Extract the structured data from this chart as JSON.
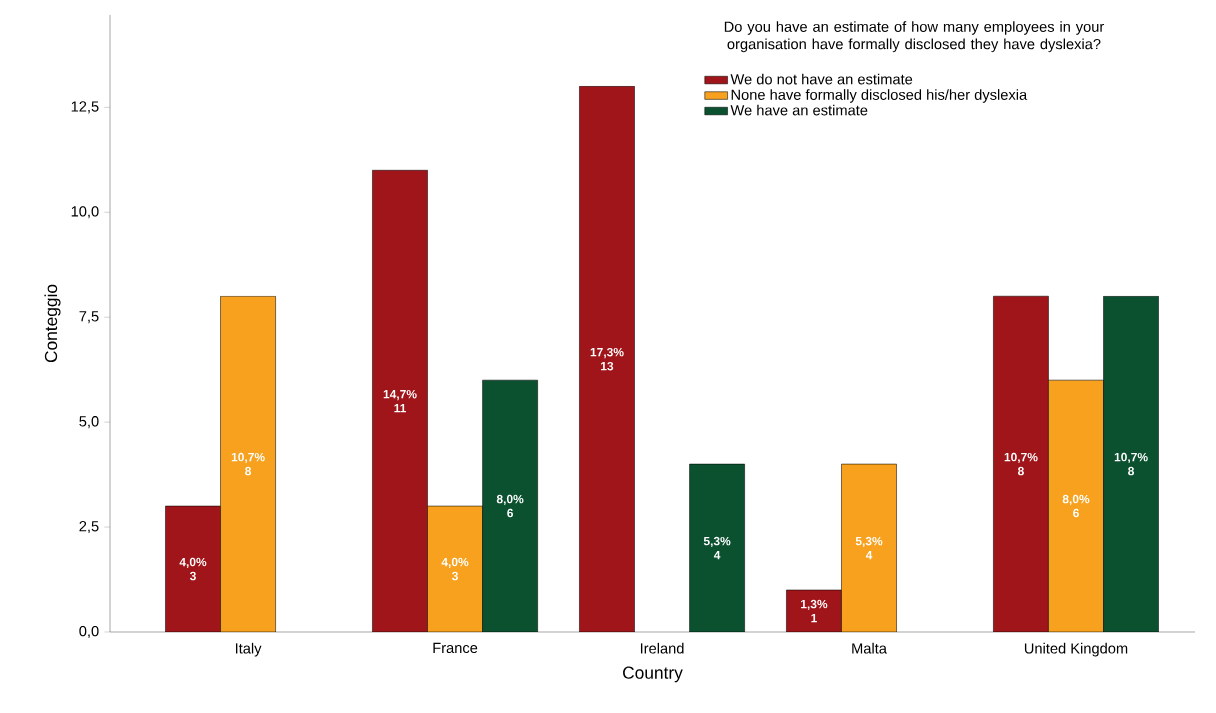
{
  "chart_data": {
    "type": "bar",
    "xlabel": "Country",
    "ylabel": "Conteggio",
    "legend_title": "Do you have an estimate of how many employees in your organisation have formally disclosed they have dyslexia?",
    "categories": [
      "Italy",
      "France",
      "Ireland",
      "Malta",
      "United Kingdom"
    ],
    "series": [
      {
        "name": "We do not have an estimate",
        "color": "#a01519",
        "values": [
          3,
          11,
          13,
          1,
          8
        ],
        "value_labels": [
          "4,0% 3",
          "14,7% 11",
          "17,3% 13",
          "1,3% 1",
          "10,7% 8"
        ]
      },
      {
        "name": "None have formally disclosed his/her dyslexia",
        "color": "#f7a11e",
        "values": [
          8,
          3,
          null,
          4,
          6
        ],
        "value_labels": [
          "10,7% 8",
          "4,0% 3",
          null,
          "5,3% 4",
          "8,0% 6"
        ]
      },
      {
        "name": "We have an estimate",
        "color": "#0b5130",
        "values": [
          null,
          6,
          4,
          null,
          8
        ],
        "value_labels": [
          null,
          "8,0% 6",
          "5,3% 4",
          null,
          "10,7% 8"
        ]
      }
    ],
    "ylim": [
      0,
      14.7
    ],
    "yticks": [
      {
        "value": 0,
        "label": "0,0"
      },
      {
        "value": 2.5,
        "label": "2,5"
      },
      {
        "value": 5,
        "label": "5,0"
      },
      {
        "value": 7.5,
        "label": "7,5"
      },
      {
        "value": 10,
        "label": "10,0"
      },
      {
        "value": 12.5,
        "label": "12,5"
      }
    ],
    "grid": false,
    "legend": "top right"
  }
}
